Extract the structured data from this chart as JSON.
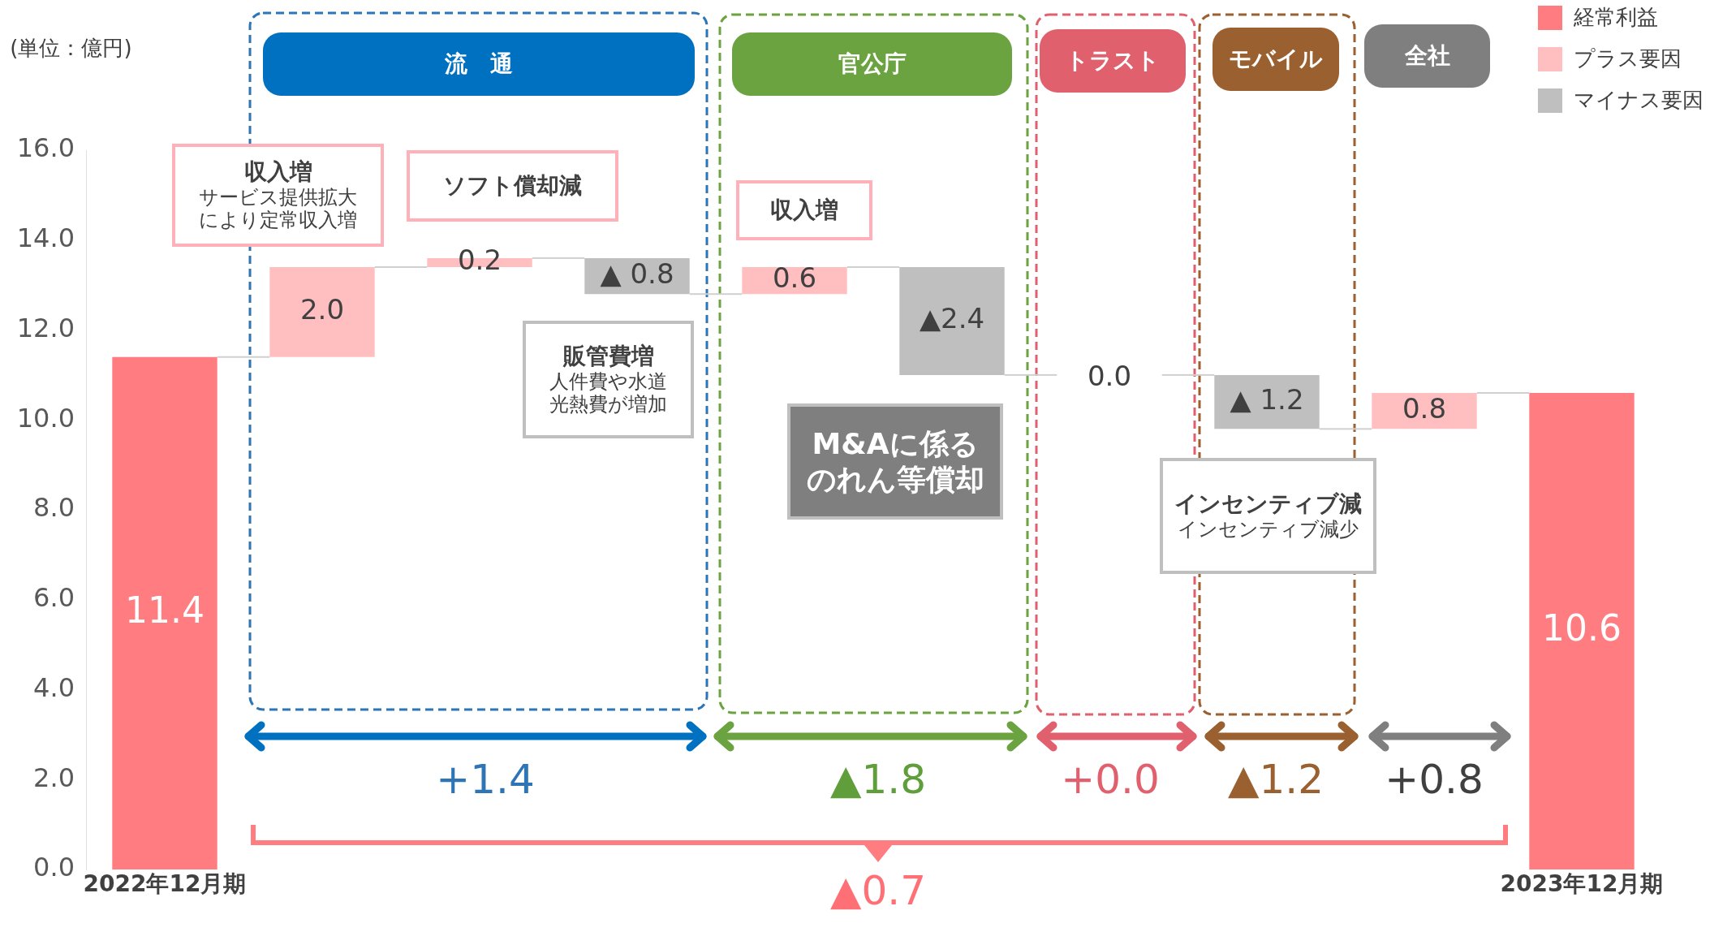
{
  "chart_data": {
    "type": "bar",
    "categories": [
      "2022年12月期",
      null,
      null,
      null,
      null,
      null,
      null,
      null,
      null,
      "2023年12月期"
    ],
    "series": [
      {
        "name": "経常利益",
        "color": "#ff7c80",
        "values": [
          11.4,
          null,
          null,
          null,
          null,
          null,
          null,
          null,
          null,
          10.6
        ],
        "base": [
          0,
          null,
          null,
          null,
          null,
          null,
          null,
          null,
          null,
          0
        ]
      },
      {
        "name": "プラス要因",
        "color": "#ffbfc1",
        "values": [
          null,
          2.0,
          0.2,
          null,
          0.6,
          null,
          0.0,
          null,
          0.8,
          null
        ],
        "base": [
          null,
          11.4,
          13.4,
          null,
          12.8,
          null,
          null,
          null,
          9.8,
          null
        ]
      },
      {
        "name": "マイナス要因",
        "color": "#bfbfbf",
        "values": [
          null,
          null,
          null,
          -0.8,
          null,
          -2.4,
          null,
          -1.2,
          null,
          null
        ],
        "base": [
          null,
          null,
          null,
          13.6,
          null,
          13.4,
          null,
          11.0,
          null,
          null
        ]
      }
    ],
    "value_labels": [
      "11.4",
      "2.0",
      "0.2",
      "▲ 0.8",
      "0.6",
      "▲2.4",
      "0.0",
      "▲ 1.2",
      "0.8",
      "10.6"
    ],
    "ylim": [
      0,
      16
    ],
    "yticks": [
      {
        "value": 0,
        "label": "0.0"
      },
      {
        "value": 2,
        "label": "2.0"
      },
      {
        "value": 4,
        "label": "4.0"
      },
      {
        "value": 6,
        "label": "6.0"
      },
      {
        "value": 8,
        "label": "8.0"
      },
      {
        "value": 10,
        "label": "10.0"
      },
      {
        "value": 12,
        "label": "12.0"
      },
      {
        "value": 14,
        "label": "14.0"
      },
      {
        "value": 16,
        "label": "16.0"
      }
    ],
    "grid": false,
    "legend": "top right",
    "annotations": [
      "(単位：億円)",
      "流　通",
      "官公庁",
      "トラスト",
      "モバイル",
      "全社",
      "収入増",
      "サービス提供拡大により定常収入増",
      "ソフト償却減",
      "販管費増",
      "人件費や水道光熱費が増加",
      "収入増",
      "M&Aに係るのれん等償却",
      "インセンティブ減",
      "インセンティブ減少",
      "+1.4",
      "▲1.8",
      "+0.0",
      "▲1.2",
      "+0.8",
      "▲0.7"
    ]
  }
}
